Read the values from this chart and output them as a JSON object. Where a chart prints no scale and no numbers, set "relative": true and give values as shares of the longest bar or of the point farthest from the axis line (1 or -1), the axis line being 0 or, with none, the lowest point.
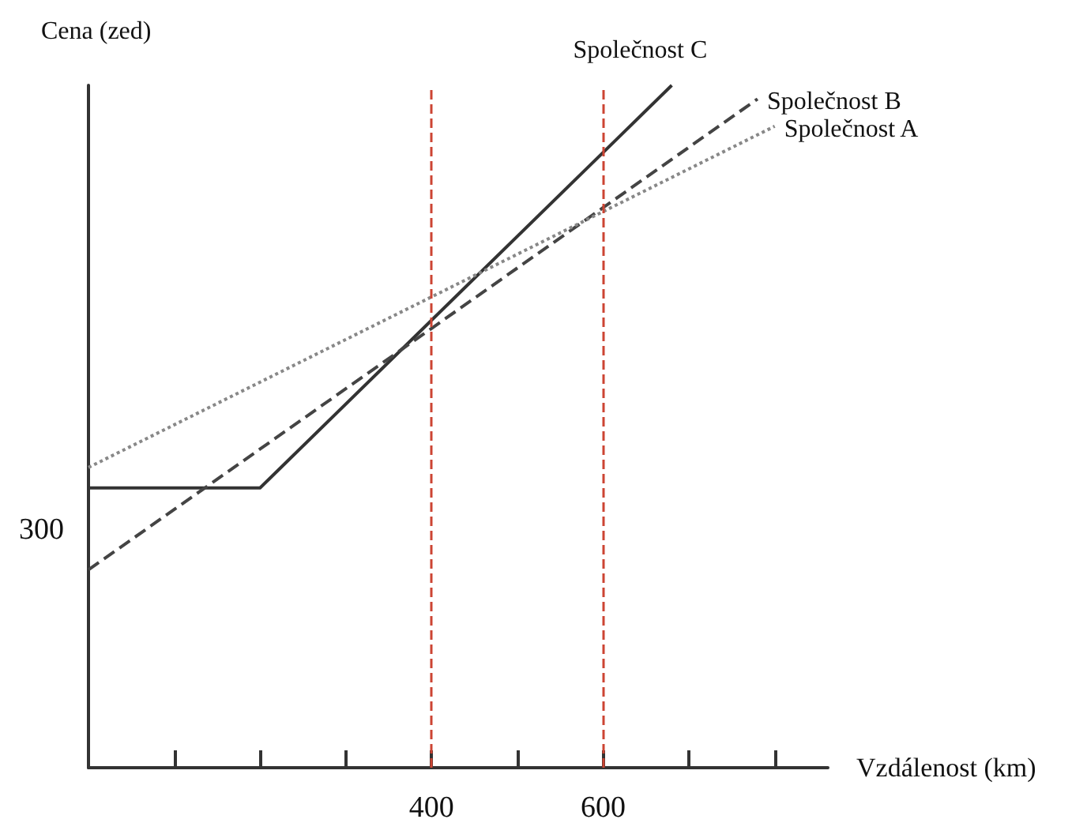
{
  "chart_data": {
    "type": "line",
    "xlabel": "Vzdálenost (km)",
    "ylabel": "Cena (zed)",
    "xlim": [
      0,
      862
    ],
    "relative": true,
    "annotations": [
      "300"
    ],
    "xticks": [
      {
        "value": 0,
        "label": null
      },
      {
        "value": 100,
        "label": null
      },
      {
        "value": 200,
        "label": null
      },
      {
        "value": 300,
        "label": null
      },
      400,
      {
        "value": 500,
        "label": null
      },
      600,
      {
        "value": 700,
        "label": null
      },
      {
        "value": 800,
        "label": null
      }
    ],
    "series": [
      {
        "name": "Společnost C",
        "color": "#333333",
        "line_style": "solid",
        "x": [
          0,
          200,
          680
        ],
        "values": [
          0.41,
          0.41,
          1
        ]
      },
      {
        "name": "Společnost B",
        "color": "#444444",
        "line_style": "dashed",
        "x": [
          0,
          780
        ],
        "values": [
          0.29,
          0.98
        ]
      },
      {
        "name": "Společnost A",
        "color": "#888888",
        "line_style": "dotted",
        "x": [
          0,
          800
        ],
        "values": [
          0.44,
          0.94
        ]
      }
    ],
    "ref_lines": [
      {
        "axis": "x",
        "value": 400,
        "color": "#cc4433",
        "line_style": "dashed"
      },
      {
        "axis": "x",
        "value": 600,
        "color": "#cc4433",
        "line_style": "dashed"
      }
    ],
    "marker": "none",
    "grid": false,
    "legend": false
  }
}
